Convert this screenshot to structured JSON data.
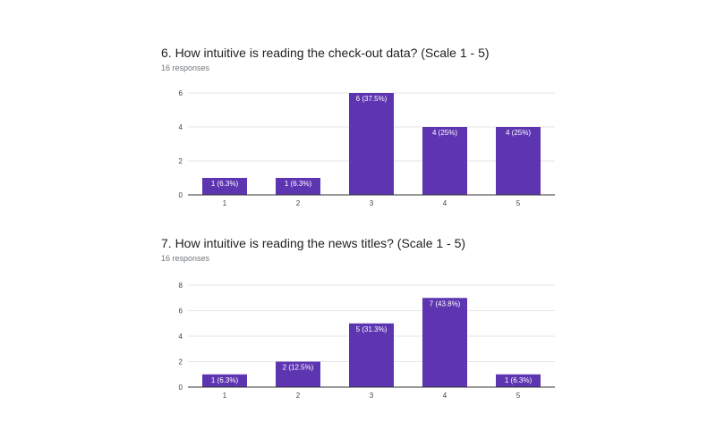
{
  "chart_data": [
    {
      "type": "bar",
      "title": "6. How intuitive is reading the check-out data?  (Scale 1 - 5)",
      "subtitle": "16 responses",
      "categories": [
        "1",
        "2",
        "3",
        "4",
        "5"
      ],
      "values": [
        1,
        1,
        6,
        4,
        4
      ],
      "data_labels": [
        "1 (6.3%)",
        "1 (6.3%)",
        "6 (37.5%)",
        "4 (25%)",
        "4 (25%)"
      ],
      "yticks": [
        0,
        2,
        4,
        6
      ],
      "ylim": [
        0,
        6
      ],
      "grid": true,
      "bar_color": "#5e35b1"
    },
    {
      "type": "bar",
      "title": "7. How intuitive is reading the news titles?  (Scale 1 - 5)",
      "subtitle": "16 responses",
      "categories": [
        "1",
        "2",
        "3",
        "4",
        "5"
      ],
      "values": [
        1,
        2,
        5,
        7,
        1
      ],
      "data_labels": [
        "1 (6.3%)",
        "2 (12.5%)",
        "5 (31.3%)",
        "7 (43.8%)",
        "1 (6.3%)"
      ],
      "yticks": [
        0,
        2,
        4,
        6,
        8
      ],
      "ylim": [
        0,
        8
      ],
      "grid": true,
      "bar_color": "#5e35b1"
    }
  ]
}
